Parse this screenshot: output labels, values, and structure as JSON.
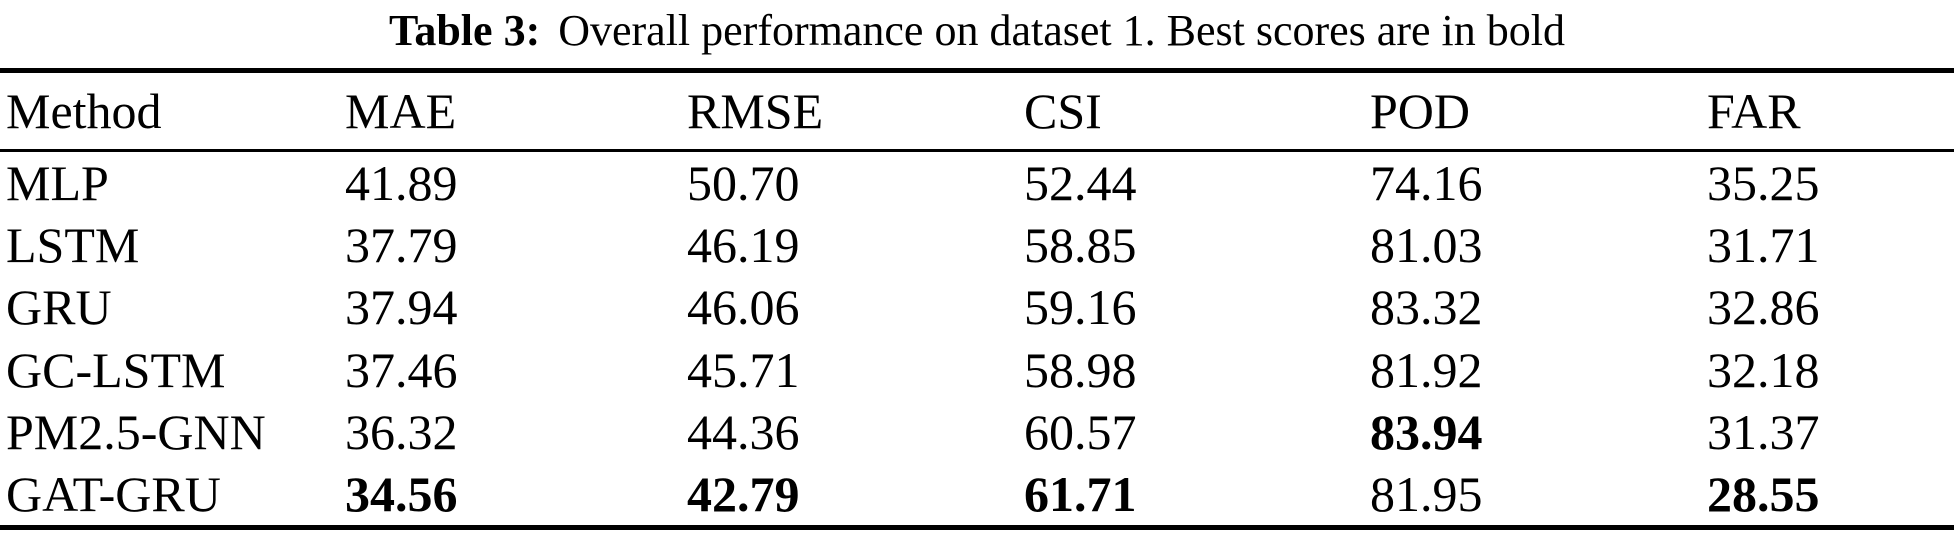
{
  "caption": {
    "label": "Table 3:",
    "text": "Overall performance on dataset 1. Best scores are in bold"
  },
  "table": {
    "columns": [
      "Method",
      "MAE",
      "RMSE",
      "CSI",
      "POD",
      "FAR"
    ],
    "rows": [
      {
        "method": "MLP",
        "values": [
          "41.89",
          "50.70",
          "52.44",
          "74.16",
          "35.25"
        ],
        "bold": [
          false,
          false,
          false,
          false,
          false
        ]
      },
      {
        "method": "LSTM",
        "values": [
          "37.79",
          "46.19",
          "58.85",
          "81.03",
          "31.71"
        ],
        "bold": [
          false,
          false,
          false,
          false,
          false
        ]
      },
      {
        "method": "GRU",
        "values": [
          "37.94",
          "46.06",
          "59.16",
          "83.32",
          "32.86"
        ],
        "bold": [
          false,
          false,
          false,
          false,
          false
        ]
      },
      {
        "method": "GC-LSTM",
        "values": [
          "37.46",
          "45.71",
          "58.98",
          "81.92",
          "32.18"
        ],
        "bold": [
          false,
          false,
          false,
          false,
          false
        ]
      },
      {
        "method": "PM2.5-GNN",
        "values": [
          "36.32",
          "44.36",
          "60.57",
          "83.94",
          "31.37"
        ],
        "bold": [
          false,
          false,
          false,
          true,
          false
        ]
      },
      {
        "method": "GAT-GRU",
        "values": [
          "34.56",
          "42.79",
          "61.71",
          "81.95",
          "28.55"
        ],
        "bold": [
          true,
          true,
          true,
          false,
          true
        ]
      }
    ]
  },
  "colors": {
    "text": "#000000",
    "background": "#ffffff",
    "rule": "#000000"
  }
}
